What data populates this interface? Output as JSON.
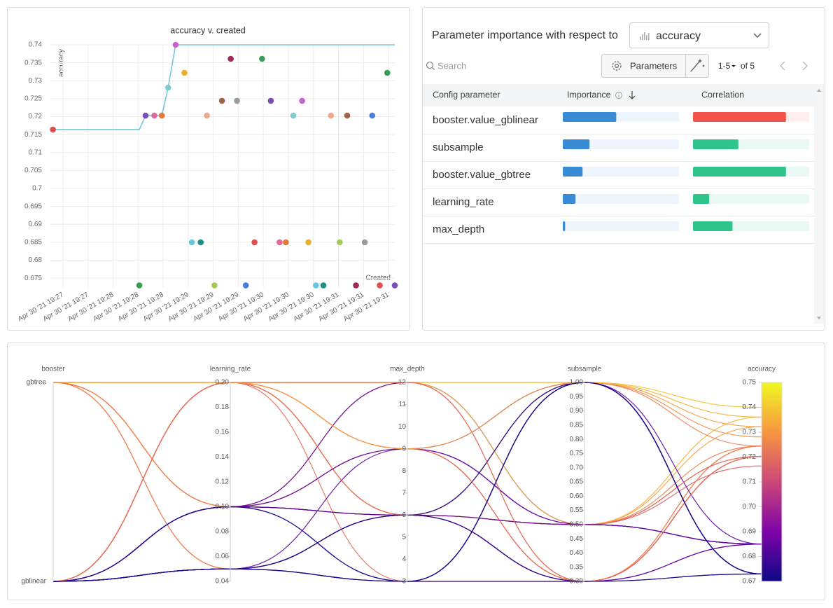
{
  "chart_data": [
    {
      "type": "scatter",
      "title": "accuracy v. created",
      "x_label": "Created",
      "y_label": "accuracy",
      "x": [
        "2021-04-30T19:27:12",
        "2021-04-30T19:28:21",
        "2021-04-30T19:28:26",
        "2021-04-30T19:28:33",
        "2021-04-30T19:28:39",
        "2021-04-30T19:28:44",
        "2021-04-30T19:28:50",
        "2021-04-30T19:28:57",
        "2021-04-30T19:29:03",
        "2021-04-30T19:29:10",
        "2021-04-30T19:29:15",
        "2021-04-30T19:29:21",
        "2021-04-30T19:29:27",
        "2021-04-30T19:29:34",
        "2021-04-30T19:29:39",
        "2021-04-30T19:29:46",
        "2021-04-30T19:29:53",
        "2021-04-30T19:29:59",
        "2021-04-30T19:30:06",
        "2021-04-30T19:30:13",
        "2021-04-30T19:30:18",
        "2021-04-30T19:30:24",
        "2021-04-30T19:30:31",
        "2021-04-30T19:30:36",
        "2021-04-30T19:30:42",
        "2021-04-30T19:30:48",
        "2021-04-30T19:30:54",
        "2021-04-30T19:31:01",
        "2021-04-30T19:31:07",
        "2021-04-30T19:31:14",
        "2021-04-30T19:31:21",
        "2021-04-30T19:31:27",
        "2021-04-30T19:31:33",
        "2021-04-30T19:31:39",
        "2021-04-30T19:31:45"
      ],
      "values": [
        0.7164,
        0.673,
        0.7203,
        0.7203,
        0.7203,
        0.7281,
        0.74,
        0.7322,
        0.685,
        0.685,
        0.7203,
        0.673,
        0.7244,
        0.7361,
        0.7244,
        0.673,
        0.685,
        0.7361,
        0.7244,
        0.685,
        0.685,
        0.7203,
        0.7244,
        0.685,
        0.673,
        0.673,
        0.7203,
        0.685,
        0.7203,
        0.673,
        0.685,
        0.7203,
        0.673,
        0.7322,
        0.673
      ],
      "colors": [
        "#df4f4f",
        "#3a9b5b",
        "#7b4fb8",
        "#e06aa0",
        "#e07b3a",
        "#7fcbd0",
        "#c864d2",
        "#e8b02a",
        "#66c8e0",
        "#1f8f86",
        "#f0a890",
        "#a6c85a",
        "#a0634a",
        "#a0285a",
        "#9a9a9a",
        "#4a7fd8",
        "#df4f4f",
        "#3a9b5b",
        "#7b4fb8",
        "#e06aa0",
        "#e07b3a",
        "#7fcbd0",
        "#c864d2",
        "#e8b02a",
        "#66c8e0",
        "#1f8f86",
        "#f0a890",
        "#a6c85a",
        "#a0634a",
        "#a0285a",
        "#9a9a9a",
        "#4a7fd8",
        "#df4f4f",
        "#3a9b5b",
        "#7b4fb8"
      ],
      "line_color": "#76c8d9",
      "xlim": [
        "2021-04-30T19:27:10",
        "2021-04-30T19:31:45"
      ],
      "xticks": [
        {
          "value": "2021-04-30T19:27:20",
          "label": "Apr 30 '21 19:27"
        },
        {
          "value": "2021-04-30T19:27:40",
          "label": "Apr 30 '21 19:27"
        },
        {
          "value": "2021-04-30T19:28:00",
          "label": "Apr 30 '21 19:28"
        },
        {
          "value": "2021-04-30T19:28:20",
          "label": "Apr 30 '21 19:28"
        },
        {
          "value": "2021-04-30T19:28:40",
          "label": "Apr 30 '21 19:28"
        },
        {
          "value": "2021-04-30T19:29:00",
          "label": "Apr 30 '21 19:29"
        },
        {
          "value": "2021-04-30T19:29:20",
          "label": "Apr 30 '21 19:29"
        },
        {
          "value": "2021-04-30T19:29:40",
          "label": "Apr 30 '21 19:29"
        },
        {
          "value": "2021-04-30T19:30:00",
          "label": "Apr 30 '21 19:30"
        },
        {
          "value": "2021-04-30T19:30:20",
          "label": "Apr 30 '21 19:30"
        },
        {
          "value": "2021-04-30T19:30:40",
          "label": "Apr 30 '21 19:30"
        },
        {
          "value": "2021-04-30T19:31:00",
          "label": "Apr 30 '21 19:31"
        },
        {
          "value": "2021-04-30T19:31:20",
          "label": "Apr 30 '21 19:31"
        },
        {
          "value": "2021-04-30T19:31:40",
          "label": "Apr 30 '21 19:31"
        }
      ],
      "ylim": [
        0.6725,
        0.74
      ],
      "yticks": [
        0.675,
        0.68,
        0.685,
        0.69,
        0.695,
        0.7,
        0.705,
        0.71,
        0.715,
        0.72,
        0.725,
        0.73,
        0.735,
        0.74
      ],
      "grid": true
    },
    {
      "type": "parallel",
      "colormap": [
        "#0d0887",
        "#7e03a8",
        "#cc4778",
        "#f89540",
        "#f0f921"
      ],
      "dimensions": [
        {
          "name": "booster",
          "categories": [
            "gblinear",
            "gbtree"
          ],
          "values": [
            "gblinear",
            "gblinear",
            "gblinear",
            "gblinear",
            "gblinear",
            "gbtree",
            "gbtree",
            "gbtree",
            "gblinear",
            "gblinear",
            "gblinear",
            "gblinear",
            "gbtree",
            "gbtree",
            "gbtree",
            "gblinear",
            "gblinear",
            "gbtree",
            "gbtree",
            "gblinear",
            "gblinear",
            "gblinear",
            "gbtree",
            "gblinear",
            "gblinear",
            "gblinear",
            "gblinear",
            "gblinear",
            "gblinear",
            "gblinear",
            "gblinear",
            "gblinear",
            "gblinear",
            "gbtree",
            "gblinear"
          ]
        },
        {
          "name": "learning_rate",
          "ylim": [
            0.04,
            0.2
          ],
          "yticks": [
            0.04,
            0.06,
            0.08,
            {
              "value": 0.1,
              "label": "0.10"
            },
            0.12,
            0.14,
            0.16,
            0.18,
            {
              "value": 0.2,
              "label": "0.20"
            }
          ],
          "values": [
            0.1,
            0.05,
            0.2,
            0.2,
            0.2,
            0.1,
            0.2,
            0.1,
            0.1,
            0.05,
            0.2,
            0.05,
            0.05,
            0.2,
            0.1,
            0.1,
            0.1,
            0.2,
            0.1,
            0.05,
            0.1,
            0.2,
            0.05,
            0.05,
            0.1,
            0.05,
            0.2,
            0.1,
            0.2,
            0.05,
            0.1,
            0.2,
            0.05,
            0.2,
            0.1
          ]
        },
        {
          "name": "max_depth",
          "ylim": [
            3,
            12
          ],
          "yticks": [
            3,
            4,
            5,
            6,
            7,
            8,
            9,
            10,
            11,
            12
          ],
          "values": [
            6,
            3,
            9,
            12,
            6,
            12,
            12,
            6,
            9,
            6,
            3,
            3,
            6,
            6,
            9,
            6,
            12,
            12,
            6,
            6,
            9,
            6,
            6,
            9,
            3,
            6,
            9,
            6,
            6,
            3,
            6,
            12,
            6,
            9,
            3
          ]
        },
        {
          "name": "subsample",
          "ylim": [
            0.3,
            1
          ],
          "yticks": [
            {
              "value": 0.3,
              "label": "0.30"
            },
            0.35,
            {
              "value": 0.4,
              "label": "0.40"
            },
            0.45,
            {
              "value": 0.5,
              "label": "0.50"
            },
            0.55,
            {
              "value": 0.6,
              "label": "0.60"
            },
            0.65,
            {
              "value": 0.7,
              "label": "0.70"
            },
            0.75,
            {
              "value": 0.8,
              "label": "0.80"
            },
            0.85,
            {
              "value": 0.9,
              "label": "0.90"
            },
            0.95,
            {
              "value": 1,
              "label": "1.00"
            }
          ],
          "values": [
            0.5,
            1,
            0.3,
            0.3,
            0.5,
            1,
            1,
            0.5,
            0.5,
            0.3,
            0.3,
            1,
            0.5,
            1,
            0.3,
            1,
            0.5,
            0.5,
            0.3,
            0.5,
            1,
            0.3,
            1,
            0.5,
            1,
            1,
            0.3,
            0.3,
            0.5,
            0.3,
            0.5,
            0.3,
            0.3,
            1,
            1
          ]
        },
        {
          "name": "accuracy",
          "ylim": [
            0.67,
            0.75
          ],
          "yticks": [
            0.67,
            0.68,
            0.69,
            {
              "value": 0.7,
              "label": "0.70"
            },
            0.71,
            0.72,
            0.73,
            0.74,
            0.75
          ],
          "values": [
            0.7164,
            0.673,
            0.7203,
            0.7203,
            0.7203,
            0.7281,
            0.74,
            0.7322,
            0.685,
            0.685,
            0.7203,
            0.673,
            0.7244,
            0.7361,
            0.7244,
            0.673,
            0.685,
            0.7361,
            0.7244,
            0.685,
            0.685,
            0.7203,
            0.7244,
            0.685,
            0.673,
            0.673,
            0.7203,
            0.685,
            0.7203,
            0.673,
            0.685,
            0.7203,
            0.673,
            0.7322,
            0.673
          ]
        }
      ]
    }
  ],
  "importance_panel": {
    "title": "Parameter importance with respect to",
    "metric": "accuracy",
    "search_placeholder": "Search",
    "button": "Parameters",
    "page_range": "1-5",
    "page_total": "of 5",
    "columns": [
      "Config parameter",
      "Importance",
      "Correlation"
    ],
    "range": [
      0,
      1
    ],
    "importance_color": "#3a8bd6",
    "positive_color": "#2ec48a",
    "negative_color": "#f2544b",
    "rows": [
      {
        "parameter": "booster.value_gblinear",
        "importance": 0.46,
        "correlation": -0.8
      },
      {
        "parameter": "subsample",
        "importance": 0.23,
        "correlation": 0.39
      },
      {
        "parameter": "booster.value_gbtree",
        "importance": 0.17,
        "correlation": 0.8
      },
      {
        "parameter": "learning_rate",
        "importance": 0.11,
        "correlation": 0.14
      },
      {
        "parameter": "max_depth",
        "importance": 0.02,
        "correlation": 0.34
      }
    ]
  }
}
